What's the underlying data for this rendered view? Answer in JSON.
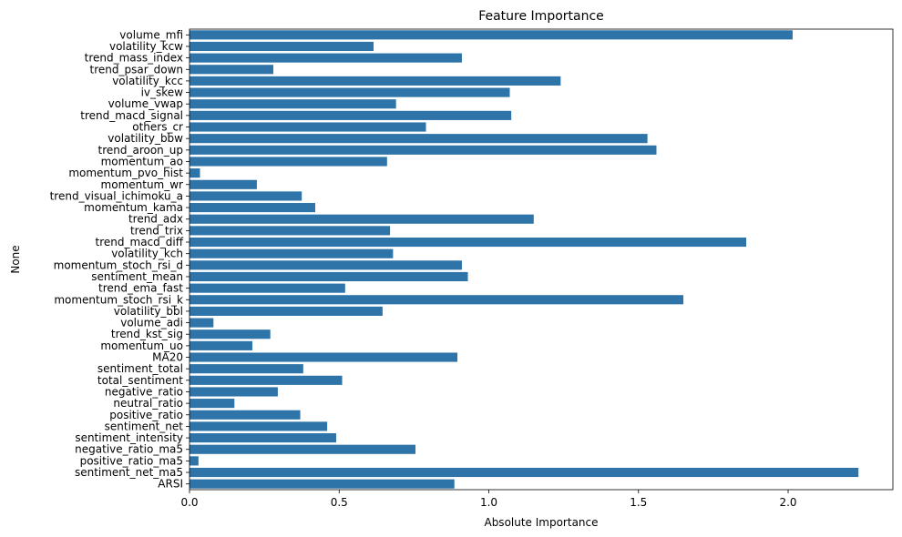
{
  "chart_data": {
    "type": "bar",
    "orientation": "horizontal",
    "title": "Feature Importance",
    "xlabel": "Absolute Importance",
    "ylabel": "None",
    "xlim": [
      0,
      2.35
    ],
    "xticks": [
      0.0,
      0.5,
      1.0,
      1.5,
      2.0
    ],
    "xtick_labels": [
      "0.0",
      "0.5",
      "1.0",
      "1.5",
      "2.0"
    ],
    "grid": false,
    "bar_color": "#2f74a8",
    "categories": [
      "volume_mfi",
      "volatility_kcw",
      "trend_mass_index",
      "trend_psar_down",
      "volatility_kcc",
      "iv_skew",
      "volume_vwap",
      "trend_macd_signal",
      "others_cr",
      "volatility_bbw",
      "trend_aroon_up",
      "momentum_ao",
      "momentum_pvo_hist",
      "momentum_wr",
      "trend_visual_ichimoku_a",
      "momentum_kama",
      "trend_adx",
      "trend_trix",
      "trend_macd_diff",
      "volatility_kch",
      "momentum_stoch_rsi_d",
      "sentiment_mean",
      "trend_ema_fast",
      "momentum_stoch_rsi_k",
      "volatility_bbl",
      "volume_adi",
      "trend_kst_sig",
      "momentum_uo",
      "MA20",
      "sentiment_total",
      "total_sentiment",
      "negative_ratio",
      "neutral_ratio",
      "positive_ratio",
      "sentiment_net",
      "sentiment_intensity",
      "negative_ratio_ma5",
      "positive_ratio_ma5",
      "sentiment_net_ma5",
      "ARSI"
    ],
    "values": [
      2.015,
      0.615,
      0.91,
      0.28,
      1.24,
      1.07,
      0.69,
      1.075,
      0.79,
      1.53,
      1.56,
      0.66,
      0.035,
      0.225,
      0.375,
      0.42,
      1.15,
      0.67,
      1.86,
      0.68,
      0.91,
      0.93,
      0.52,
      1.65,
      0.645,
      0.08,
      0.27,
      0.21,
      0.895,
      0.38,
      0.51,
      0.295,
      0.15,
      0.37,
      0.46,
      0.49,
      0.755,
      0.03,
      2.235,
      0.885
    ]
  }
}
